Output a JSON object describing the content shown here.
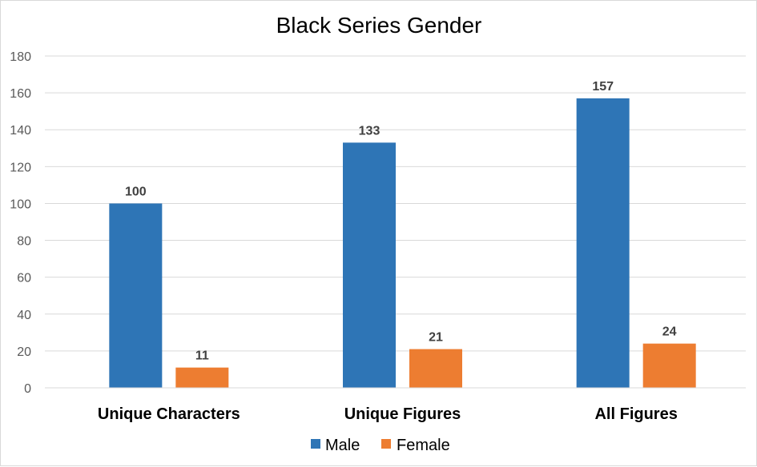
{
  "chart_data": {
    "type": "bar",
    "title": "Black Series Gender",
    "categories": [
      "Unique Characters",
      "Unique Figures",
      "All Figures"
    ],
    "series": [
      {
        "name": "Male",
        "values": [
          100,
          133,
          157
        ],
        "color": "#2E75B6"
      },
      {
        "name": "Female",
        "values": [
          11,
          21,
          24
        ],
        "color": "#ED7D31"
      }
    ],
    "ylim": [
      0,
      180
    ],
    "yticks": [
      0,
      20,
      40,
      60,
      80,
      100,
      120,
      140,
      160,
      180
    ],
    "grid": true,
    "legend": "bottom",
    "data_labels": true
  }
}
